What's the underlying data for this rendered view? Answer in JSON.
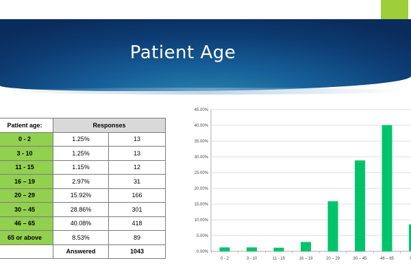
{
  "header": {
    "title": "Patient Age"
  },
  "table": {
    "age_header": "Patient age:",
    "responses_header": "Responses",
    "rows": [
      {
        "age": "0 - 2",
        "pct": "1.25%",
        "count": "13"
      },
      {
        "age": "3 - 10",
        "pct": "1.25%",
        "count": "13"
      },
      {
        "age": "11 - 15",
        "pct": "1.15%",
        "count": "12"
      },
      {
        "age": "16 – 19",
        "pct": "2.97%",
        "count": "31"
      },
      {
        "age": "20 – 29",
        "pct": "15.92%",
        "count": "166"
      },
      {
        "age": "30 – 45",
        "pct": "28.86%",
        "count": "301"
      },
      {
        "age": "46 – 65",
        "pct": "40.08%",
        "count": "418"
      },
      {
        "age": "65 or above",
        "pct": "8.53%",
        "count": "89"
      }
    ],
    "footer_label": "Answered",
    "footer_total": "1043"
  },
  "colors": {
    "banner": "#0d3c73",
    "accent": "#9ccf3a",
    "age_cell": "#92d050",
    "bar": "#00c46a"
  },
  "chart_data": {
    "type": "bar",
    "categories": [
      "0 - 2",
      "3 - 10",
      "11 - 15",
      "16 – 19",
      "20 – 29",
      "30 – 45",
      "46 – 65",
      "65 or above"
    ],
    "category_tick_labels": [
      "0 - 2",
      "3 - 10",
      "11 - 15",
      "16 – 19",
      "20 – 29",
      "30 – 45",
      "46 – 65",
      "65 o"
    ],
    "values": [
      1.25,
      1.25,
      1.15,
      2.97,
      15.92,
      28.86,
      40.08,
      8.53
    ],
    "y_tick_labels": [
      "0.00%",
      "5.00%",
      "10.00%",
      "15.00%",
      "20.00%",
      "25.00%",
      "30.00%",
      "35.00%",
      "40.00%",
      "45.00%"
    ],
    "ylim": [
      0,
      45
    ],
    "y_unit": "%",
    "grid": true,
    "title": "",
    "xlabel": "",
    "ylabel": ""
  }
}
